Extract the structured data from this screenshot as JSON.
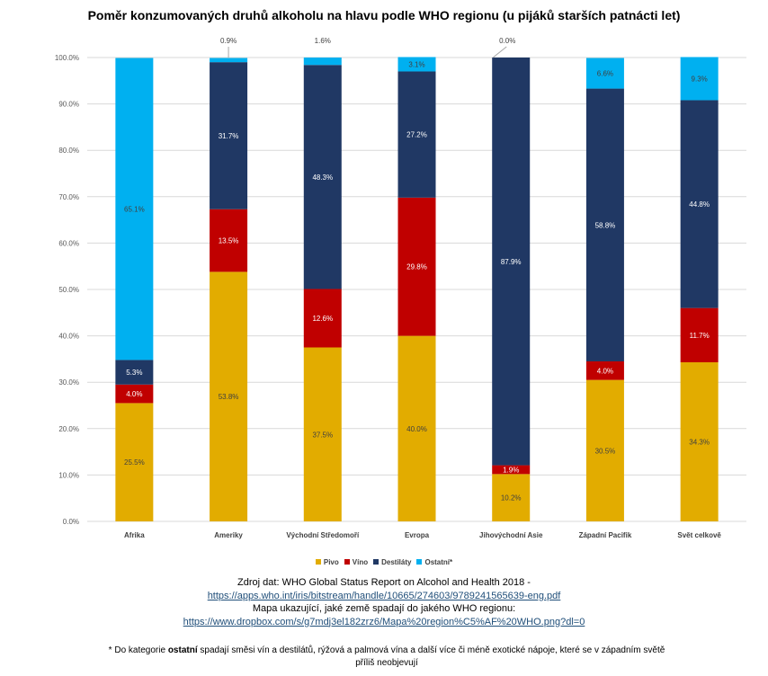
{
  "chart_data": {
    "type": "bar",
    "stacked": true,
    "title": "Poměr konzumovaných druhů alkoholu na hlavu podle WHO regionu (u pijáků starších patnácti let)",
    "xlabel": "",
    "ylabel": "",
    "ylim": [
      0,
      100
    ],
    "yticks": [
      "0.0%",
      "10.0%",
      "20.0%",
      "30.0%",
      "40.0%",
      "50.0%",
      "60.0%",
      "70.0%",
      "80.0%",
      "90.0%",
      "100.0%"
    ],
    "grid": true,
    "legend_position": "bottom",
    "categories": [
      "Afrika",
      "Ameriky",
      "Východní Středomoří",
      "Evropa",
      "Jihovýchodní  Asie",
      "Západní Pacifik",
      "Svět celkově"
    ],
    "series": [
      {
        "name": "Pivo",
        "color": "#E2AC00",
        "label_color": "#404040",
        "values": [
          25.5,
          53.8,
          37.5,
          40.0,
          10.2,
          30.5,
          34.3
        ]
      },
      {
        "name": "Víno",
        "color": "#C00000",
        "label_color": "#ffffff",
        "values": [
          4.0,
          13.5,
          12.6,
          29.8,
          1.9,
          4.0,
          11.7
        ]
      },
      {
        "name": "Destiláty",
        "color": "#203864",
        "label_color": "#ffffff",
        "values": [
          5.3,
          31.7,
          48.3,
          27.2,
          87.9,
          58.8,
          44.8
        ]
      },
      {
        "name": "Ostatní*",
        "color": "#00B0F0",
        "label_color": "#404040",
        "values": [
          65.1,
          0.9,
          1.6,
          3.1,
          0.0,
          6.6,
          9.3
        ]
      }
    ],
    "data_labels": [
      [
        "25.5%",
        "53.8%",
        "37.5%",
        "40.0%",
        "10.2%",
        "30.5%",
        "34.3%"
      ],
      [
        "4.0%",
        "13.5%",
        "12.6%",
        "29.8%",
        "1.9%",
        "4.0%",
        "11.7%"
      ],
      [
        "5.3%",
        "31.7%",
        "48.3%",
        "27.2%",
        "87.9%",
        "58.8%",
        "44.8%"
      ],
      [
        "65.1%",
        "0.9%",
        "1.6%",
        "3.1%",
        "0.0%",
        "6.6%",
        "9.3%"
      ]
    ],
    "outside_labels": [
      [
        3,
        1
      ],
      [
        3,
        2
      ],
      [
        3,
        4
      ]
    ]
  },
  "source": {
    "line1": "Zdroj dat: WHO Global Status Report on Alcohol and Health 2018 -",
    "link1": "https://apps.who.int/iris/bitstream/handle/10665/274603/9789241565639-eng.pdf",
    "line2": "Mapa ukazující, jaké země spadají do jakého WHO regionu:",
    "link2": "https://www.dropbox.com/s/g7mdj3el182zrz6/Mapa%20region%C5%AF%20WHO.png?dl=0"
  },
  "footnote": {
    "prefix": "* Do kategorie ",
    "bold": "ostatní",
    "rest": " spadají směsi vín a destilátů, rýžová a palmová vína a další více či méně exotické nápoje, které se v západním světě příliš neobjevují"
  }
}
